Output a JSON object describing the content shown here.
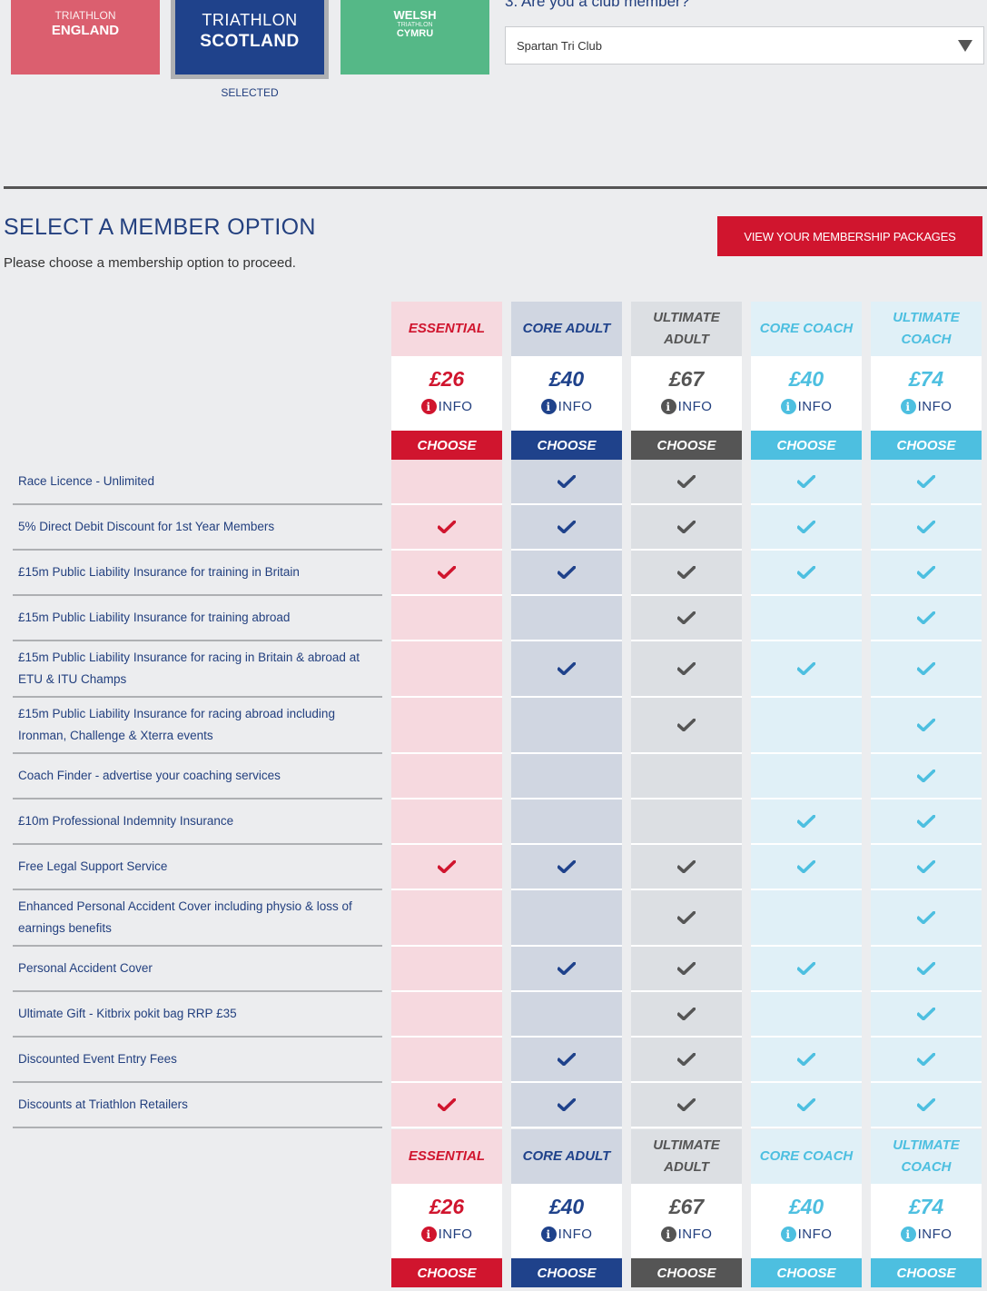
{
  "federations": [
    {
      "id": "england",
      "line1": "TRIATHLON",
      "line2": "ENGLAND",
      "color": "#db5f6f"
    },
    {
      "id": "scotland",
      "line1": "TRIATHLON",
      "line2": "SCOTLAND",
      "color": "#1f428b",
      "selected": true
    },
    {
      "id": "wales",
      "line1": "WELSH",
      "line2": "TRIATHLON",
      "line3": "CYMRU",
      "color": "#55b887"
    }
  ],
  "selected_label": "SELECTED",
  "club": {
    "question": "3. Are you a club member?",
    "selected_value": "Spartan Tri Club"
  },
  "section": {
    "title": "SELECT A MEMBER OPTION",
    "subtitle": "Please choose a membership option to proceed.",
    "view_packages_label": "VIEW YOUR MEMBERSHIP PACKAGES"
  },
  "plans": [
    {
      "name": "ESSENTIAL",
      "price": "£26",
      "info_label": "INFO",
      "choose_label": "CHOOSE",
      "color": "#d0152e"
    },
    {
      "name": "CORE ADULT",
      "price": "£40",
      "info_label": "INFO",
      "choose_label": "CHOOSE",
      "color": "#1f428b"
    },
    {
      "name": "ULTIMATE ADULT",
      "price": "£67",
      "info_label": "INFO",
      "choose_label": "CHOOSE",
      "color": "#555555"
    },
    {
      "name": "CORE COACH",
      "price": "£40",
      "info_label": "INFO",
      "choose_label": "CHOOSE",
      "color": "#4dbfe0"
    },
    {
      "name": "ULTIMATE COACH",
      "price": "£74",
      "info_label": "INFO",
      "choose_label": "CHOOSE",
      "color": "#4dbfe0"
    }
  ],
  "features": [
    {
      "label": "Race Licence - Unlimited",
      "included": [
        false,
        true,
        true,
        true,
        true
      ]
    },
    {
      "label": "5% Direct Debit Discount for 1st Year Members",
      "included": [
        true,
        true,
        true,
        true,
        true
      ]
    },
    {
      "label": "£15m Public Liability Insurance for training in Britain",
      "included": [
        true,
        true,
        true,
        true,
        true
      ]
    },
    {
      "label": "£15m Public Liability Insurance for training abroad",
      "included": [
        false,
        false,
        true,
        false,
        true
      ]
    },
    {
      "label": "£15m Public Liability Insurance for racing in Britain & abroad at ETU & ITU Champs",
      "included": [
        false,
        true,
        true,
        true,
        true
      ],
      "tall": true
    },
    {
      "label": "£15m Public Liability Insurance for racing abroad including Ironman, Challenge & Xterra events",
      "included": [
        false,
        false,
        true,
        false,
        true
      ],
      "tall": true
    },
    {
      "label": "Coach Finder - advertise your coaching services",
      "included": [
        false,
        false,
        false,
        false,
        true
      ]
    },
    {
      "label": "£10m Professional Indemnity Insurance",
      "included": [
        false,
        false,
        false,
        true,
        true
      ]
    },
    {
      "label": "Free Legal Support Service",
      "included": [
        true,
        true,
        true,
        true,
        true
      ]
    },
    {
      "label": "Enhanced Personal Accident Cover including physio & loss of earnings benefits",
      "included": [
        false,
        false,
        true,
        false,
        true
      ],
      "tall": true
    },
    {
      "label": "Personal Accident Cover",
      "included": [
        false,
        true,
        true,
        true,
        true
      ]
    },
    {
      "label": "Ultimate Gift - Kitbrix pokit bag RRP £35",
      "included": [
        false,
        false,
        true,
        false,
        true
      ]
    },
    {
      "label": "Discounted Event Entry Fees",
      "included": [
        false,
        true,
        true,
        true,
        true
      ]
    },
    {
      "label": "Discounts at Triathlon Retailers",
      "included": [
        true,
        true,
        true,
        true,
        true
      ]
    }
  ],
  "icons": {
    "check": "check-icon",
    "info": "info-icon",
    "dropdown": "caret-down-icon"
  }
}
